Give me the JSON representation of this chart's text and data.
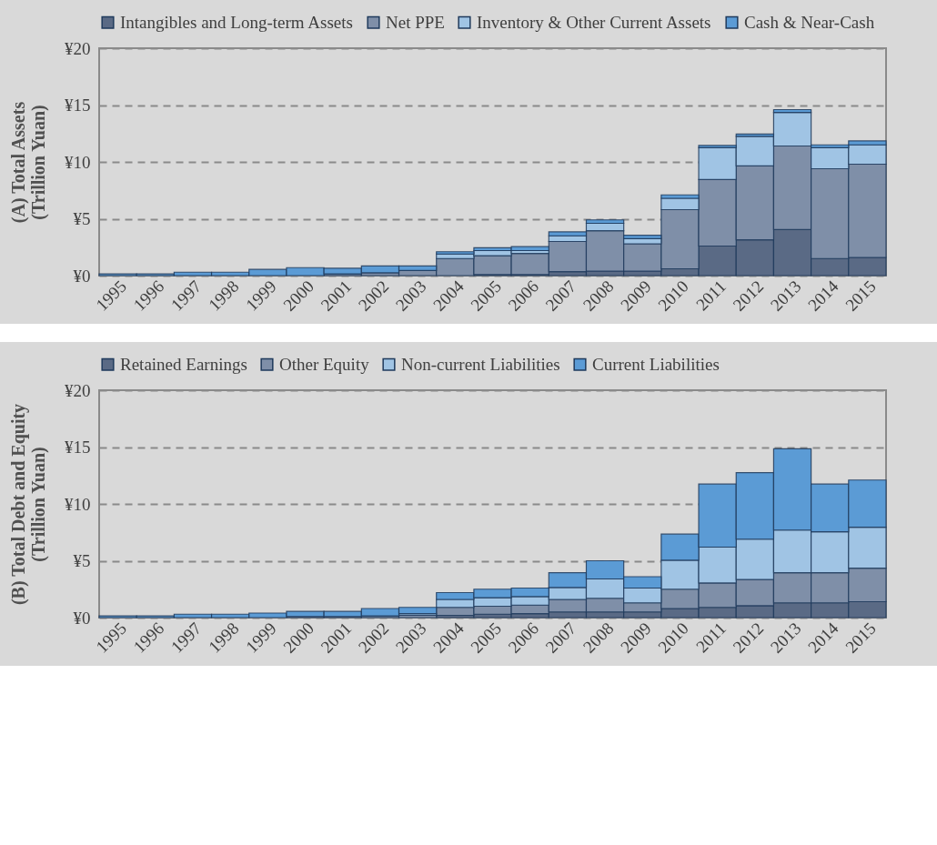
{
  "chart_data": [
    {
      "type": "bar",
      "stacked": true,
      "ylabel": "(A) Total Assets\n(Trillion Yuan)",
      "categories": [
        "1995",
        "1996",
        "1997",
        "1998",
        "1999",
        "2000",
        "2001",
        "2002",
        "2003",
        "2004",
        "2005",
        "2006",
        "2007",
        "2008",
        "2009",
        "2010",
        "2011",
        "2012",
        "2013",
        "2014",
        "2015"
      ],
      "series": [
        {
          "name": "Intangibles and Long-term Assets",
          "color": "#5a6a85",
          "values": [
            null,
            null,
            null,
            null,
            null,
            null,
            null,
            null,
            null,
            null,
            0.1,
            0.1,
            0.35,
            0.4,
            0.4,
            0.6,
            2.6,
            3.15,
            4.05,
            1.5,
            1.6
          ]
        },
        {
          "name": "Net PPE",
          "color": "#7f8fa8",
          "values": [
            null,
            null,
            null,
            null,
            null,
            null,
            0.15,
            0.25,
            0.45,
            1.5,
            1.65,
            1.85,
            2.65,
            3.55,
            2.4,
            5.2,
            5.85,
            6.5,
            7.35,
            7.9,
            8.2
          ]
        },
        {
          "name": "Inventory & Other Current Assets",
          "color": "#a0c4e4",
          "values": [
            null,
            null,
            null,
            null,
            null,
            null,
            null,
            null,
            null,
            0.4,
            0.45,
            0.25,
            0.5,
            0.65,
            0.45,
            1.0,
            2.8,
            2.6,
            2.95,
            1.85,
            1.7
          ]
        },
        {
          "name": "Cash & Near-Cash",
          "color": "#5b9bd5",
          "values": [
            0.15,
            0.15,
            0.3,
            0.3,
            0.55,
            0.7,
            0.5,
            0.6,
            0.4,
            0.2,
            0.25,
            0.35,
            0.35,
            0.3,
            0.3,
            0.3,
            0.2,
            0.2,
            0.25,
            0.25,
            0.35
          ]
        }
      ],
      "ylim": [
        0,
        20
      ],
      "yticks": [
        {
          "value": 0,
          "label": "¥0"
        },
        {
          "value": 5,
          "label": "¥5"
        },
        {
          "value": 10,
          "label": "¥10"
        },
        {
          "value": 15,
          "label": "¥15"
        },
        {
          "value": 20,
          "label": "¥20"
        }
      ],
      "grid": "y",
      "legend": "top"
    },
    {
      "type": "bar",
      "stacked": true,
      "ylabel": "(B) Total Debt and Equity\n(Trillion Yuan)",
      "categories": [
        "1995",
        "1996",
        "1997",
        "1998",
        "1999",
        "2000",
        "2001",
        "2002",
        "2003",
        "2004",
        "2005",
        "2006",
        "2007",
        "2008",
        "2009",
        "2010",
        "2011",
        "2012",
        "2013",
        "2014",
        "2015"
      ],
      "series": [
        {
          "name": "Retained Earnings",
          "color": "#5a6a85",
          "values": [
            null,
            null,
            null,
            null,
            null,
            null,
            null,
            null,
            null,
            0.2,
            0.3,
            0.35,
            0.5,
            0.5,
            0.5,
            0.8,
            0.9,
            1.05,
            1.3,
            1.3,
            1.4
          ]
        },
        {
          "name": "Other Equity",
          "color": "#7f8fa8",
          "values": [
            null,
            null,
            null,
            null,
            null,
            0.1,
            0.1,
            0.15,
            0.2,
            0.7,
            0.7,
            0.75,
            1.1,
            1.2,
            0.8,
            1.7,
            2.15,
            2.3,
            2.65,
            2.65,
            2.95
          ]
        },
        {
          "name": "Non-current Liabilities",
          "color": "#a0c4e4",
          "values": [
            null,
            null,
            null,
            null,
            null,
            null,
            null,
            null,
            0.15,
            0.7,
            0.75,
            0.75,
            1.05,
            1.7,
            1.3,
            2.55,
            3.15,
            3.55,
            3.75,
            3.6,
            3.6
          ]
        },
        {
          "name": "Current Liabilities",
          "color": "#5b9bd5",
          "values": [
            0.15,
            0.15,
            0.3,
            0.3,
            0.4,
            0.45,
            0.45,
            0.65,
            0.55,
            0.6,
            0.75,
            0.75,
            1.3,
            1.6,
            1.0,
            2.3,
            5.55,
            5.85,
            7.15,
            4.2,
            4.15
          ]
        }
      ],
      "ylim": [
        0,
        20
      ],
      "yticks": [
        {
          "value": 0,
          "label": "¥0"
        },
        {
          "value": 5,
          "label": "¥5"
        },
        {
          "value": 10,
          "label": "¥10"
        },
        {
          "value": 15,
          "label": "¥15"
        },
        {
          "value": 20,
          "label": "¥20"
        }
      ],
      "grid": "y",
      "legend": "top"
    }
  ]
}
